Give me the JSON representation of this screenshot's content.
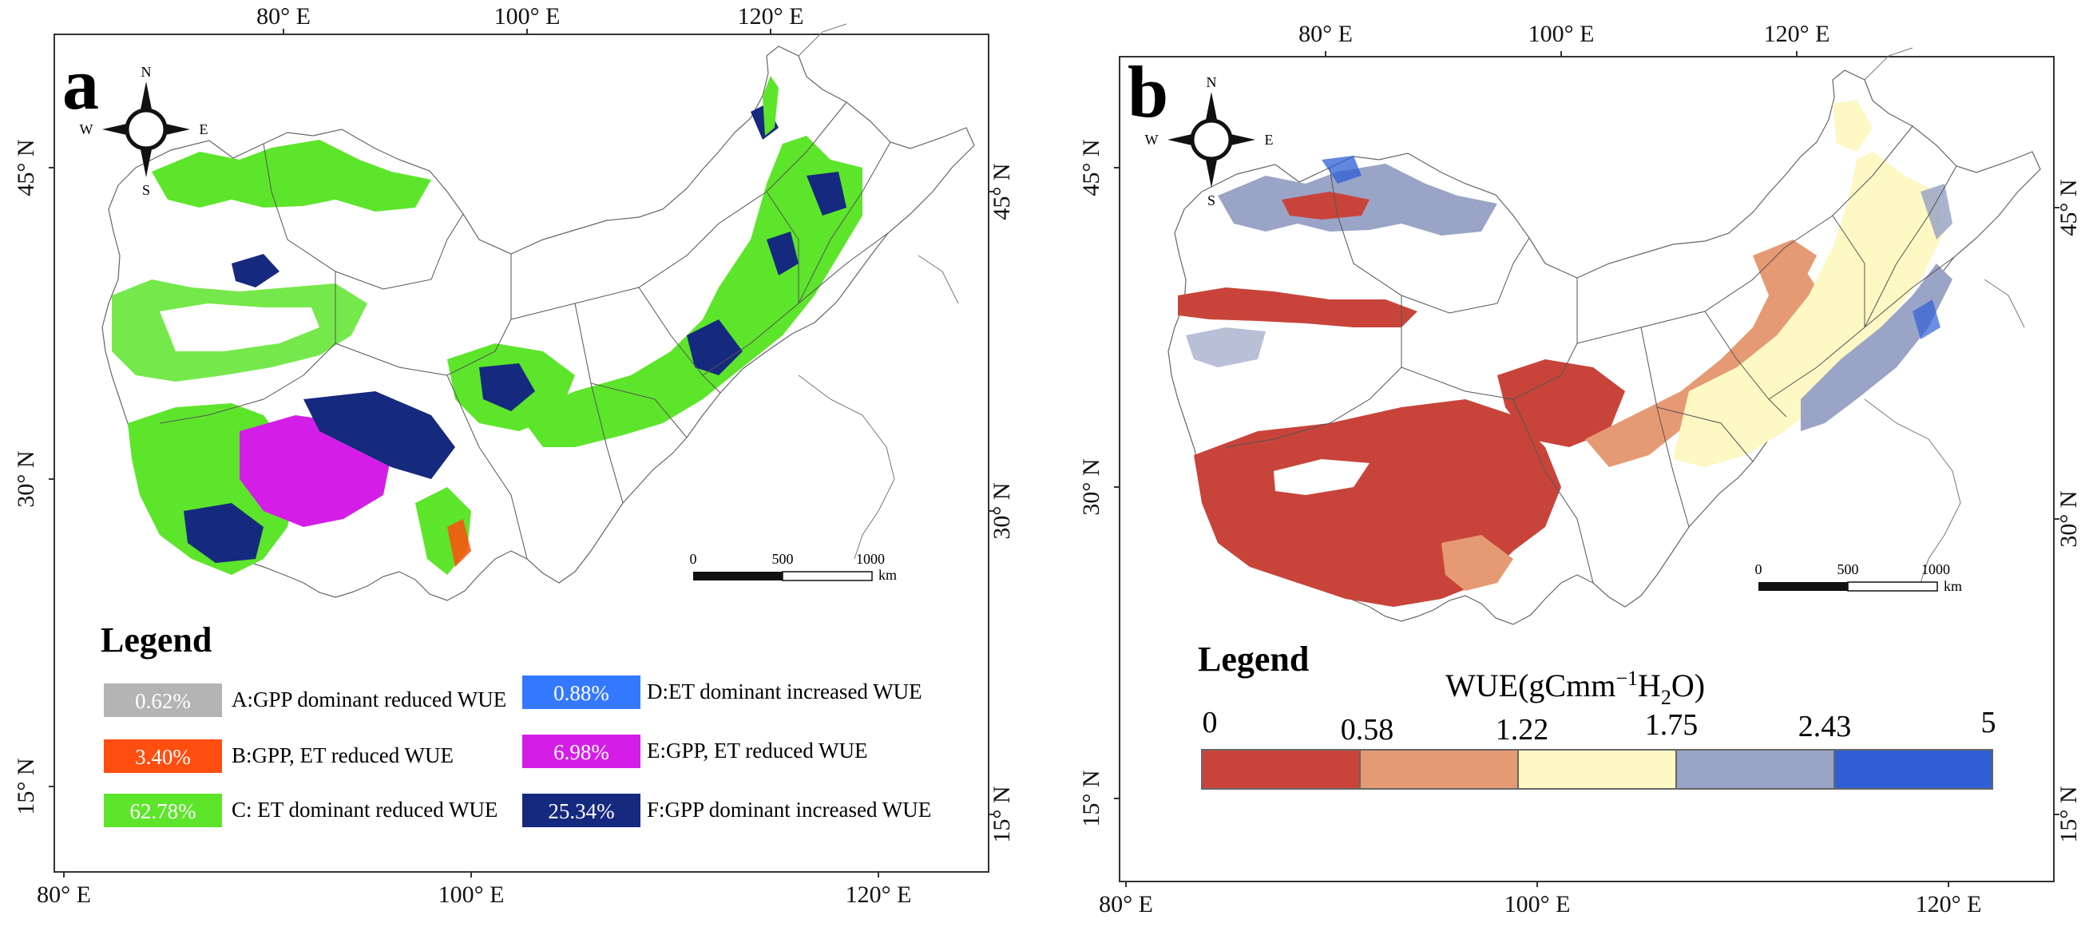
{
  "colors": {
    "A": "#b4b4b4",
    "B": "#ff4e0f",
    "C": "#5de52b",
    "D": "#3478ff",
    "E": "#d41ee8",
    "F": "#15297e",
    "wue0": "#c8443a",
    "wue1": "#e69a73",
    "wue2": "#fdf8c4",
    "wue3": "#9aa4c6",
    "wue4": "#2e5fd4",
    "border": "#333333"
  },
  "panel_a": {
    "label": "a",
    "top_ticks": [
      "80° E",
      "100° E",
      "120° E"
    ],
    "bottom_ticks": [
      "80° E",
      "100° E",
      "120° E"
    ],
    "left_ticks": [
      "45° N",
      "30° N",
      "15° N"
    ],
    "right_ticks": [
      "45° N",
      "30° N",
      "15° N"
    ],
    "compass": {
      "n": "N",
      "s": "S",
      "e": "E",
      "w": "W"
    },
    "scale": {
      "zero": "0",
      "mid": "500",
      "end": "1000",
      "unit": "km"
    },
    "legend": {
      "title": "Legend",
      "items": [
        {
          "key": "A",
          "percent": "0.62%",
          "label": "A:GPP dominant reduced WUE"
        },
        {
          "key": "B",
          "percent": "3.40%",
          "label": "B:GPP, ET reduced WUE"
        },
        {
          "key": "C",
          "percent": "62.78%",
          "label": "C: ET dominant reduced WUE"
        },
        {
          "key": "D",
          "percent": "0.88%",
          "label": "D:ET dominant increased WUE"
        },
        {
          "key": "E",
          "percent": "6.98%",
          "label": "E:GPP, ET reduced WUE"
        },
        {
          "key": "F",
          "percent": "25.34%",
          "label": "F:GPP dominant increased WUE"
        }
      ]
    }
  },
  "panel_b": {
    "label": "b",
    "top_ticks": [
      "80° E",
      "100° E",
      "120° E"
    ],
    "bottom_ticks": [
      "80° E",
      "100° E",
      "120° E"
    ],
    "left_ticks": [
      "45° N",
      "30° N",
      "15° N"
    ],
    "right_ticks": [
      "45° N",
      "30° N",
      "15° N"
    ],
    "compass": {
      "n": "N",
      "s": "S",
      "e": "E",
      "w": "W"
    },
    "scale": {
      "zero": "0",
      "mid": "500",
      "end": "1000",
      "unit": "km"
    },
    "legend": {
      "title": "Legend",
      "colorbar_title_prefix": "WUE(gCmm",
      "colorbar_title_sup": "−1",
      "colorbar_title_mid": "H",
      "colorbar_title_sub": "2",
      "colorbar_title_suffix": "O)",
      "colorbar_ticks": [
        "0",
        "0.58",
        "1.22",
        "1.75",
        "2.43",
        "5"
      ]
    }
  }
}
